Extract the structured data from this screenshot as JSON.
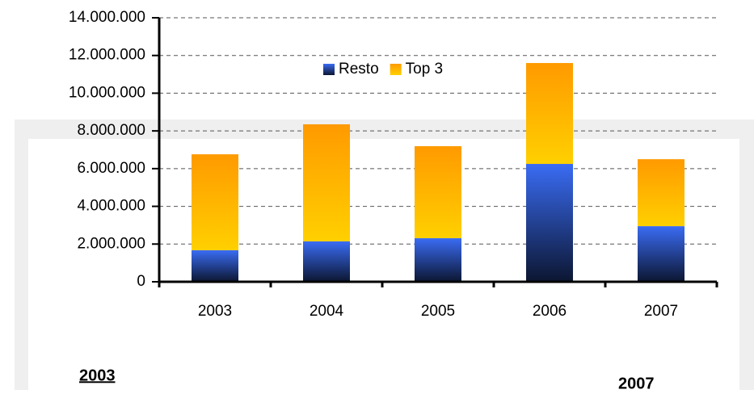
{
  "chart_data": {
    "type": "stacked_bar",
    "categories": [
      "2003",
      "2004",
      "2005",
      "2006",
      "2007"
    ],
    "series": [
      {
        "name": "Resto",
        "color": "#3a6cf4",
        "values": [
          1670000,
          2140000,
          2310000,
          6250000,
          2950000
        ]
      },
      {
        "name": "Top 3",
        "color": "#ff9a00",
        "values": [
          5090000,
          6210000,
          4880000,
          5350000,
          3550000
        ]
      }
    ],
    "ylim": [
      0,
      14000000
    ],
    "yticks": [
      0,
      {
        "value": 2000000,
        "label": "2.000.000"
      },
      {
        "value": 4000000,
        "label": "4.000.000"
      },
      {
        "value": 6000000,
        "label": "6.000.000"
      },
      {
        "value": 8000000,
        "label": "8.000.000"
      },
      {
        "value": 10000000,
        "label": "10.000.000"
      },
      {
        "value": 12000000,
        "label": "12.000.000"
      },
      {
        "value": 14000000,
        "label": "14.000.000"
      }
    ],
    "grid": true,
    "legend": "top"
  },
  "footer": {
    "left": "2003",
    "right": "2007"
  }
}
